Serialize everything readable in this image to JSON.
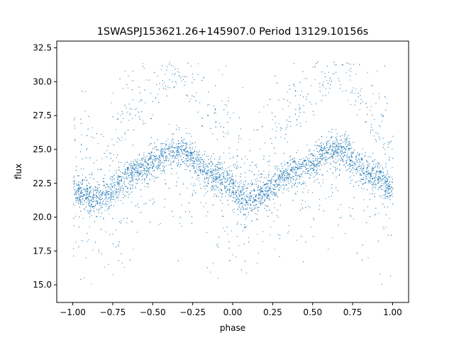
{
  "chart_data": {
    "type": "scatter",
    "title": "1SWASPJ153621.26+145907.0 Period 13129.10156s",
    "xlabel": "phase",
    "ylabel": "flux",
    "xlim": [
      -1.1,
      1.1
    ],
    "ylim": [
      13.7,
      33.0
    ],
    "xticks": [
      -1.0,
      -0.75,
      -0.5,
      -0.25,
      0.0,
      0.25,
      0.5,
      0.75,
      1.0
    ],
    "xtick_labels": [
      "−1.00",
      "−0.75",
      "−0.50",
      "−0.25",
      "0.00",
      "0.25",
      "0.50",
      "0.75",
      "1.00"
    ],
    "yticks": [
      15.0,
      17.5,
      20.0,
      22.5,
      25.0,
      27.5,
      30.0,
      32.5
    ],
    "ytick_labels": [
      "15.0",
      "17.5",
      "20.0",
      "22.5",
      "25.0",
      "27.5",
      "30.0",
      "32.5"
    ],
    "grid": false,
    "marker_color": "#1f77b4",
    "curve": {
      "description_points_x": [
        -1.0,
        -0.85,
        -0.6,
        -0.35,
        -0.1,
        0.1,
        0.4,
        0.65,
        0.9,
        1.0
      ],
      "description_points_y": [
        22.0,
        21.3,
        23.5,
        25.0,
        23.0,
        21.3,
        23.5,
        25.0,
        23.0,
        22.0
      ]
    },
    "band_halfwidth": 1.0,
    "scatter_upper_envelope_max": 31.5,
    "scatter_lower_min": 14.7
  }
}
